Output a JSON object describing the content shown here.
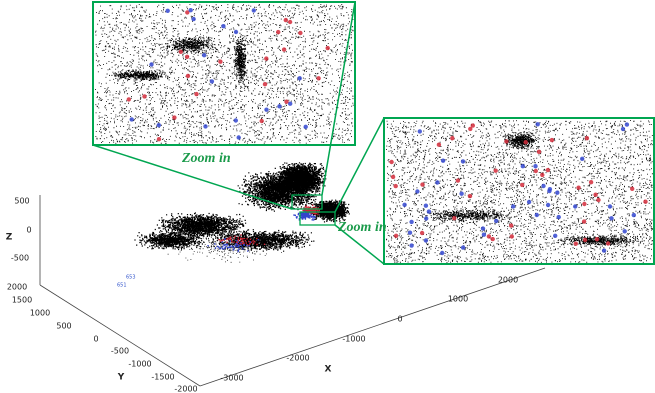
{
  "axes": {
    "z": {
      "label": "Z",
      "ticks": [
        "500",
        "0",
        "-500"
      ]
    },
    "y": {
      "label": "Y",
      "ticks": [
        "2000",
        "1500",
        "1000",
        "500",
        "0",
        "-500",
        "-1000",
        "-1500",
        "-2000"
      ]
    },
    "x": {
      "label": "X",
      "ticks": [
        "-3000",
        "-2000",
        "-1000",
        "0",
        "1000",
        "2000"
      ]
    }
  },
  "annotations": {
    "zoom_top": "Zoom in",
    "zoom_right": "Zoom in"
  },
  "point_labels": [
    "653",
    "651"
  ]
}
